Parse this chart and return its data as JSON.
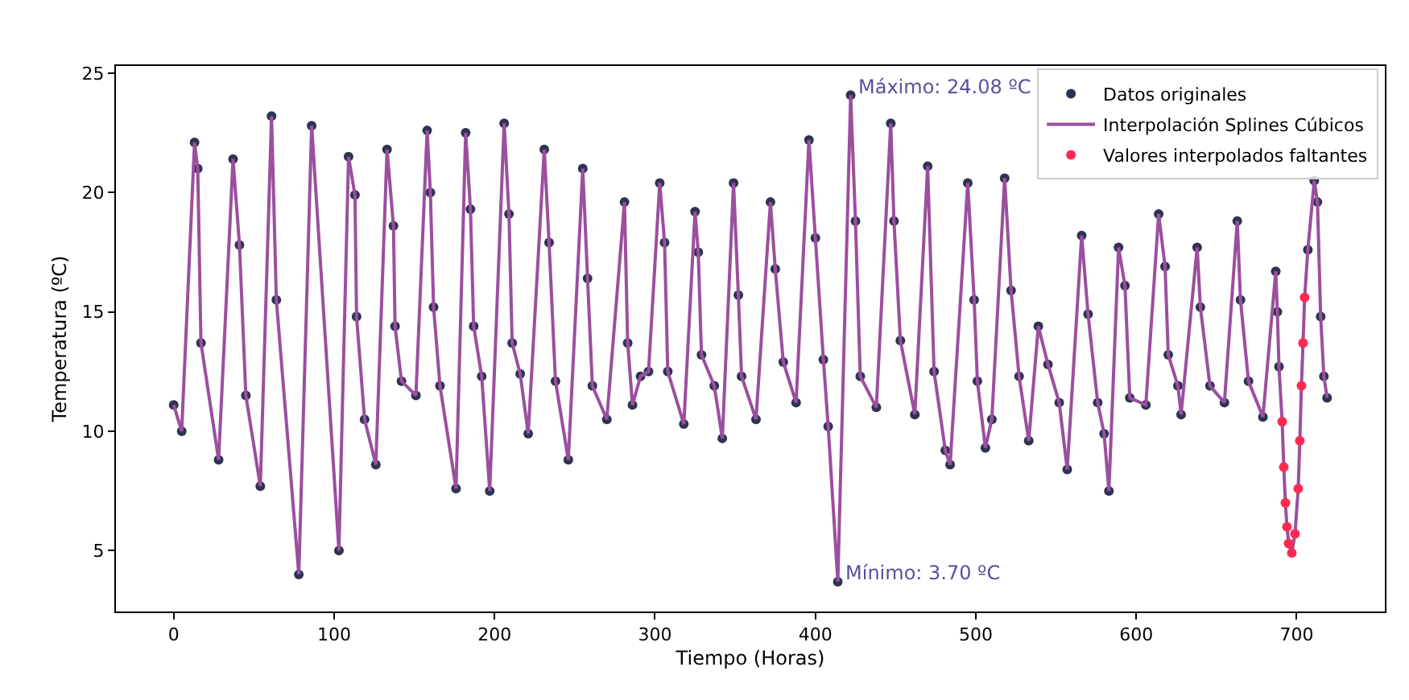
{
  "chart_data": {
    "type": "line",
    "xlabel": "Tiempo (Horas)",
    "ylabel": "Temperatura (ºC)",
    "xlim": [
      -36,
      755
    ],
    "ylim": [
      2.45,
      25.3
    ],
    "xticks": [
      0,
      100,
      200,
      300,
      400,
      500,
      600,
      700
    ],
    "yticks": [
      5,
      10,
      15,
      20,
      25
    ],
    "grid": false,
    "legend": "top right",
    "annotations": [
      {
        "text": "Máximo: 24.08 ºC",
        "x": 422,
        "y": 24.08
      },
      {
        "text": "Mínimo: 3.70 ºC",
        "x": 414,
        "y": 3.7
      }
    ],
    "series": [
      {
        "name": "Datos originales",
        "type": "scatter",
        "marker": "circle",
        "color": "#2d3452",
        "x": [
          0,
          5,
          13,
          15,
          17,
          28,
          37,
          41,
          45,
          54,
          61,
          64,
          78,
          86,
          103,
          109,
          113,
          114,
          119,
          126,
          133,
          137,
          138,
          142,
          151,
          158,
          160,
          162,
          166,
          176,
          182,
          185,
          187,
          192,
          197,
          206,
          209,
          211,
          216,
          221,
          231,
          234,
          238,
          246,
          255,
          258,
          261,
          270,
          281,
          283,
          286,
          291,
          296,
          303,
          306,
          308,
          318,
          325,
          327,
          329,
          337,
          342,
          349,
          352,
          354,
          363,
          372,
          375,
          380,
          388,
          396,
          400,
          405,
          408,
          414,
          422,
          425,
          428,
          438,
          447,
          449,
          453,
          462,
          470,
          474,
          481,
          484,
          495,
          499,
          501,
          506,
          510,
          518,
          522,
          527,
          533,
          539,
          545,
          552,
          557,
          566,
          570,
          576,
          580,
          583,
          589,
          593,
          596,
          606,
          614,
          618,
          620,
          626,
          628,
          638,
          640,
          646,
          655,
          663,
          665,
          670,
          679,
          687,
          688,
          689,
          707,
          711,
          713,
          715,
          717,
          719
        ],
        "values": [
          11.1,
          10.0,
          22.1,
          21.0,
          13.7,
          8.8,
          21.4,
          17.8,
          11.5,
          7.7,
          23.2,
          15.5,
          4.0,
          22.8,
          5.0,
          21.5,
          19.9,
          14.8,
          10.5,
          8.6,
          21.8,
          18.6,
          14.4,
          12.1,
          11.5,
          22.6,
          20.0,
          15.2,
          11.9,
          7.6,
          22.5,
          19.3,
          14.4,
          12.3,
          7.5,
          22.9,
          19.1,
          13.7,
          12.4,
          9.9,
          21.8,
          17.9,
          12.1,
          8.8,
          21.0,
          16.4,
          11.9,
          10.5,
          19.6,
          13.7,
          11.1,
          12.3,
          12.5,
          20.4,
          17.9,
          12.5,
          10.3,
          19.2,
          17.5,
          13.2,
          11.9,
          9.7,
          20.4,
          15.7,
          12.3,
          10.5,
          19.6,
          16.8,
          12.9,
          11.2,
          22.2,
          18.1,
          13.0,
          10.2,
          3.7,
          24.08,
          18.8,
          12.3,
          11.0,
          22.9,
          18.8,
          13.8,
          10.7,
          21.1,
          12.5,
          9.2,
          8.6,
          20.4,
          15.5,
          12.1,
          9.3,
          10.5,
          20.6,
          15.9,
          12.3,
          9.6,
          14.4,
          12.8,
          11.2,
          8.4,
          18.2,
          14.9,
          11.2,
          9.9,
          7.5,
          17.7,
          16.1,
          11.4,
          11.1,
          19.1,
          16.9,
          13.2,
          11.9,
          10.7,
          17.7,
          15.2,
          11.9,
          11.2,
          18.8,
          15.5,
          12.1,
          10.6,
          16.7,
          15.0,
          12.7,
          17.6,
          20.5,
          19.6,
          14.8,
          12.3,
          11.4
        ]
      },
      {
        "name": "Interpolación Splines Cúbicos",
        "line_style": "solid",
        "color": "#9b4f9f",
        "x": [
          0,
          5,
          13,
          15,
          17,
          28,
          37,
          41,
          45,
          54,
          61,
          64,
          78,
          86,
          103,
          109,
          113,
          114,
          119,
          126,
          133,
          137,
          138,
          142,
          151,
          158,
          160,
          162,
          166,
          176,
          182,
          185,
          187,
          192,
          197,
          206,
          209,
          211,
          216,
          221,
          231,
          234,
          238,
          246,
          255,
          258,
          261,
          270,
          281,
          283,
          286,
          291,
          296,
          303,
          306,
          308,
          318,
          325,
          327,
          329,
          337,
          342,
          349,
          352,
          354,
          363,
          372,
          375,
          380,
          388,
          396,
          400,
          405,
          408,
          414,
          422,
          425,
          428,
          438,
          447,
          449,
          453,
          462,
          470,
          474,
          481,
          484,
          495,
          499,
          501,
          506,
          510,
          518,
          522,
          527,
          533,
          539,
          545,
          552,
          557,
          566,
          570,
          576,
          580,
          583,
          589,
          593,
          596,
          606,
          614,
          618,
          620,
          626,
          628,
          638,
          640,
          646,
          655,
          663,
          665,
          670,
          679,
          687,
          688,
          689,
          691,
          692,
          693,
          694,
          695,
          697,
          699,
          701,
          702,
          703,
          704,
          705,
          707,
          711,
          713,
          715,
          717,
          719
        ],
        "values": [
          11.1,
          10.0,
          22.1,
          21.0,
          13.7,
          8.8,
          21.4,
          17.8,
          11.5,
          7.7,
          23.2,
          15.5,
          4.0,
          22.8,
          5.0,
          21.5,
          19.9,
          14.8,
          10.5,
          8.6,
          21.8,
          18.6,
          14.4,
          12.1,
          11.5,
          22.6,
          20.0,
          15.2,
          11.9,
          7.6,
          22.5,
          19.3,
          14.4,
          12.3,
          7.5,
          22.9,
          19.1,
          13.7,
          12.4,
          9.9,
          21.8,
          17.9,
          12.1,
          8.8,
          21.0,
          16.4,
          11.9,
          10.5,
          19.6,
          13.7,
          11.1,
          12.3,
          12.5,
          20.4,
          17.9,
          12.5,
          10.3,
          19.2,
          17.5,
          13.2,
          11.9,
          9.7,
          20.4,
          15.7,
          12.3,
          10.5,
          19.6,
          16.8,
          12.9,
          11.2,
          22.2,
          18.1,
          13.0,
          10.2,
          3.7,
          24.08,
          18.8,
          12.3,
          11.0,
          22.9,
          18.8,
          13.8,
          10.7,
          21.1,
          12.5,
          9.2,
          8.6,
          20.4,
          15.5,
          12.1,
          9.3,
          10.5,
          20.6,
          15.9,
          12.3,
          9.6,
          14.4,
          12.8,
          11.2,
          8.4,
          18.2,
          14.9,
          11.2,
          9.9,
          7.5,
          17.7,
          16.1,
          11.4,
          11.1,
          19.1,
          16.9,
          13.2,
          11.9,
          10.7,
          17.7,
          15.2,
          11.9,
          11.2,
          18.8,
          15.5,
          12.1,
          10.6,
          16.7,
          15.0,
          12.7,
          10.4,
          8.5,
          7.0,
          6.0,
          5.3,
          4.9,
          5.7,
          7.6,
          9.6,
          11.9,
          13.7,
          15.6,
          17.6,
          20.5,
          19.6,
          14.8,
          12.3,
          11.4
        ]
      },
      {
        "name": "Valores interpolados faltantes",
        "type": "scatter",
        "marker": "circle",
        "color": "#ff2a4f",
        "x": [
          691,
          692,
          693,
          694,
          695,
          697,
          699,
          701,
          702,
          703,
          704,
          705
        ],
        "values": [
          10.4,
          8.5,
          7.0,
          6.0,
          5.3,
          4.9,
          5.7,
          7.6,
          9.6,
          11.9,
          13.7,
          15.6
        ]
      }
    ]
  }
}
